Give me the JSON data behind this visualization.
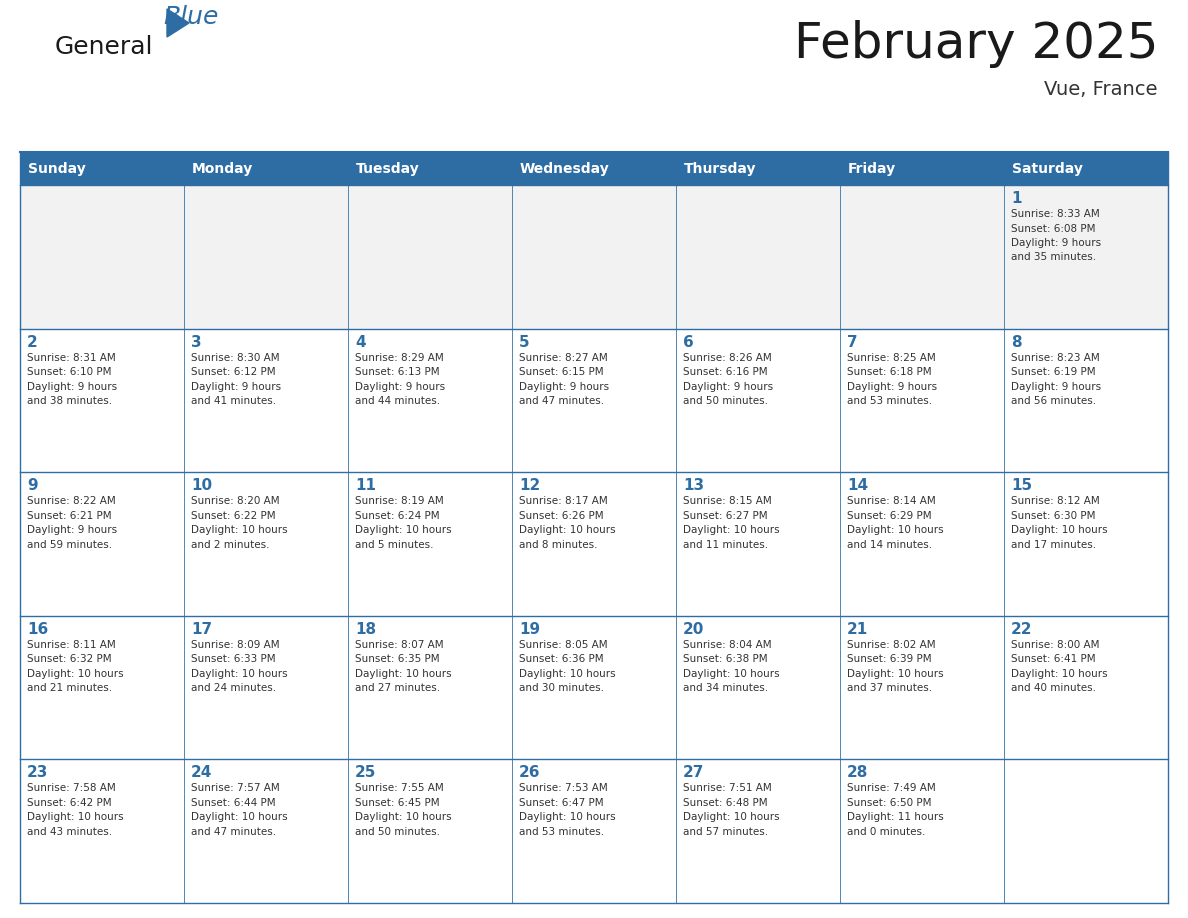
{
  "title": "February 2025",
  "subtitle": "Vue, France",
  "days_of_week": [
    "Sunday",
    "Monday",
    "Tuesday",
    "Wednesday",
    "Thursday",
    "Friday",
    "Saturday"
  ],
  "header_bg": "#2E6DA4",
  "header_text": "#FFFFFF",
  "cell_bg": "#FFFFFF",
  "cell_alt_bg": "#F2F2F2",
  "cell_border": "#2E6DA4",
  "day_num_color": "#2E6DA4",
  "info_color": "#333333",
  "title_color": "#1a1a1a",
  "subtitle_color": "#333333",
  "logo_general_color": "#1a1a1a",
  "logo_blue_color": "#2E6DA4",
  "weeks": [
    [
      {
        "day": null,
        "info": ""
      },
      {
        "day": null,
        "info": ""
      },
      {
        "day": null,
        "info": ""
      },
      {
        "day": null,
        "info": ""
      },
      {
        "day": null,
        "info": ""
      },
      {
        "day": null,
        "info": ""
      },
      {
        "day": 1,
        "info": "Sunrise: 8:33 AM\nSunset: 6:08 PM\nDaylight: 9 hours\nand 35 minutes."
      }
    ],
    [
      {
        "day": 2,
        "info": "Sunrise: 8:31 AM\nSunset: 6:10 PM\nDaylight: 9 hours\nand 38 minutes."
      },
      {
        "day": 3,
        "info": "Sunrise: 8:30 AM\nSunset: 6:12 PM\nDaylight: 9 hours\nand 41 minutes."
      },
      {
        "day": 4,
        "info": "Sunrise: 8:29 AM\nSunset: 6:13 PM\nDaylight: 9 hours\nand 44 minutes."
      },
      {
        "day": 5,
        "info": "Sunrise: 8:27 AM\nSunset: 6:15 PM\nDaylight: 9 hours\nand 47 minutes."
      },
      {
        "day": 6,
        "info": "Sunrise: 8:26 AM\nSunset: 6:16 PM\nDaylight: 9 hours\nand 50 minutes."
      },
      {
        "day": 7,
        "info": "Sunrise: 8:25 AM\nSunset: 6:18 PM\nDaylight: 9 hours\nand 53 minutes."
      },
      {
        "day": 8,
        "info": "Sunrise: 8:23 AM\nSunset: 6:19 PM\nDaylight: 9 hours\nand 56 minutes."
      }
    ],
    [
      {
        "day": 9,
        "info": "Sunrise: 8:22 AM\nSunset: 6:21 PM\nDaylight: 9 hours\nand 59 minutes."
      },
      {
        "day": 10,
        "info": "Sunrise: 8:20 AM\nSunset: 6:22 PM\nDaylight: 10 hours\nand 2 minutes."
      },
      {
        "day": 11,
        "info": "Sunrise: 8:19 AM\nSunset: 6:24 PM\nDaylight: 10 hours\nand 5 minutes."
      },
      {
        "day": 12,
        "info": "Sunrise: 8:17 AM\nSunset: 6:26 PM\nDaylight: 10 hours\nand 8 minutes."
      },
      {
        "day": 13,
        "info": "Sunrise: 8:15 AM\nSunset: 6:27 PM\nDaylight: 10 hours\nand 11 minutes."
      },
      {
        "day": 14,
        "info": "Sunrise: 8:14 AM\nSunset: 6:29 PM\nDaylight: 10 hours\nand 14 minutes."
      },
      {
        "day": 15,
        "info": "Sunrise: 8:12 AM\nSunset: 6:30 PM\nDaylight: 10 hours\nand 17 minutes."
      }
    ],
    [
      {
        "day": 16,
        "info": "Sunrise: 8:11 AM\nSunset: 6:32 PM\nDaylight: 10 hours\nand 21 minutes."
      },
      {
        "day": 17,
        "info": "Sunrise: 8:09 AM\nSunset: 6:33 PM\nDaylight: 10 hours\nand 24 minutes."
      },
      {
        "day": 18,
        "info": "Sunrise: 8:07 AM\nSunset: 6:35 PM\nDaylight: 10 hours\nand 27 minutes."
      },
      {
        "day": 19,
        "info": "Sunrise: 8:05 AM\nSunset: 6:36 PM\nDaylight: 10 hours\nand 30 minutes."
      },
      {
        "day": 20,
        "info": "Sunrise: 8:04 AM\nSunset: 6:38 PM\nDaylight: 10 hours\nand 34 minutes."
      },
      {
        "day": 21,
        "info": "Sunrise: 8:02 AM\nSunset: 6:39 PM\nDaylight: 10 hours\nand 37 minutes."
      },
      {
        "day": 22,
        "info": "Sunrise: 8:00 AM\nSunset: 6:41 PM\nDaylight: 10 hours\nand 40 minutes."
      }
    ],
    [
      {
        "day": 23,
        "info": "Sunrise: 7:58 AM\nSunset: 6:42 PM\nDaylight: 10 hours\nand 43 minutes."
      },
      {
        "day": 24,
        "info": "Sunrise: 7:57 AM\nSunset: 6:44 PM\nDaylight: 10 hours\nand 47 minutes."
      },
      {
        "day": 25,
        "info": "Sunrise: 7:55 AM\nSunset: 6:45 PM\nDaylight: 10 hours\nand 50 minutes."
      },
      {
        "day": 26,
        "info": "Sunrise: 7:53 AM\nSunset: 6:47 PM\nDaylight: 10 hours\nand 53 minutes."
      },
      {
        "day": 27,
        "info": "Sunrise: 7:51 AM\nSunset: 6:48 PM\nDaylight: 10 hours\nand 57 minutes."
      },
      {
        "day": 28,
        "info": "Sunrise: 7:49 AM\nSunset: 6:50 PM\nDaylight: 11 hours\nand 0 minutes."
      },
      {
        "day": null,
        "info": ""
      }
    ]
  ]
}
